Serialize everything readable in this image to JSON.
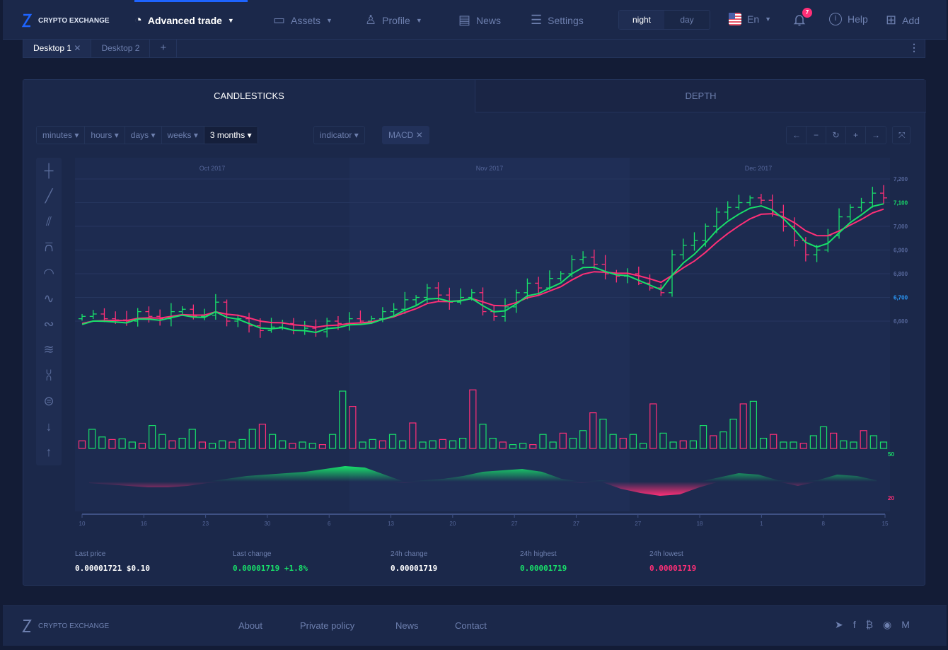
{
  "header": {
    "brand": "CRYPTO EXCHANGE",
    "nav": [
      {
        "label": "Advanced trade",
        "icon": "speedometer-icon"
      },
      {
        "label": "Assets",
        "icon": "wallet-icon"
      },
      {
        "label": "Profile",
        "icon": "user-icon"
      },
      {
        "label": "News",
        "icon": "news-icon"
      },
      {
        "label": "Settings",
        "icon": "sliders-icon"
      }
    ],
    "theme": {
      "night": "night",
      "day": "day",
      "selected": "night"
    },
    "language": "En",
    "notifications": "7",
    "help": "Help",
    "add": "Add"
  },
  "desktops": {
    "tabs": [
      "Desktop 1",
      "Desktop 2"
    ],
    "active": "Desktop 1",
    "add": "+"
  },
  "panel": {
    "tabs": [
      "CANDLESTICKS",
      "DEPTH"
    ],
    "active": "CANDLESTICKS",
    "timeframes": [
      "minutes",
      "hours",
      "days",
      "weeks",
      "3 months"
    ],
    "selected_timeframe": "3 months",
    "indicator": "indicator",
    "macd": "MACD"
  },
  "stats": [
    {
      "label": "Last price",
      "value": "0.00001721 $0.10",
      "color": "#ffffff"
    },
    {
      "label": "Last change",
      "value": "0.00001719 +1.8%",
      "color": "#18e06a"
    },
    {
      "label": "24h change",
      "value": "0.00001719",
      "color": "#ffffff"
    },
    {
      "label": "24h highest",
      "value": "0.00001719",
      "color": "#18e06a"
    },
    {
      "label": "24h lowest",
      "value": "0.00001719",
      "color": "#ff2f77"
    }
  ],
  "footer": {
    "brand": "CRYPTO EXCHANGE",
    "links": [
      "About",
      "Private policy",
      "News",
      "Contact"
    ]
  },
  "colors": {
    "up": "#18e06a",
    "down": "#ff2f77",
    "accent": "#1e64ff"
  },
  "chart_data": {
    "type": "candlestick",
    "months": [
      "Oct 2017",
      "Nov 2017",
      "Dec 2017"
    ],
    "yticks": [
      7200,
      7100,
      7000,
      6900,
      6800,
      6700,
      6600
    ],
    "ylim": [
      6500,
      7300
    ],
    "highlight_ticks": {
      "7100": "#18e06a",
      "6700": "#2b9cff"
    },
    "xticks": [
      "10",
      "16",
      "23",
      "30",
      "6",
      "13",
      "20",
      "27",
      "27",
      "27",
      "18",
      "1",
      "8",
      "15"
    ],
    "volume_labels": [
      "50",
      "20"
    ],
    "closes": [
      6620,
      6630,
      6610,
      6605,
      6600,
      6640,
      6620,
      6610,
      6640,
      6650,
      6620,
      6625,
      6680,
      6600,
      6610,
      6580,
      6560,
      6575,
      6590,
      6560,
      6570,
      6555,
      6600,
      6590,
      6610,
      6600,
      6610,
      6640,
      6650,
      6690,
      6700,
      6740,
      6710,
      6680,
      6700,
      6720,
      6640,
      6620,
      6660,
      6720,
      6760,
      6740,
      6780,
      6800,
      6860,
      6870,
      6840,
      6800,
      6790,
      6800,
      6760,
      6740,
      6720,
      6880,
      6920,
      6940,
      7000,
      7060,
      7080,
      7100,
      7120,
      7110,
      7060,
      7000,
      6940,
      6880,
      6900,
      6960,
      7040,
      7080,
      7100,
      7140,
      7120
    ],
    "volumes": [
      12,
      30,
      18,
      14,
      15,
      10,
      8,
      36,
      22,
      12,
      16,
      30,
      10,
      8,
      12,
      10,
      14,
      30,
      38,
      22,
      12,
      8,
      10,
      8,
      6,
      22,
      90,
      66,
      10,
      14,
      12,
      22,
      12,
      40,
      10,
      12,
      14,
      12,
      16,
      92,
      38,
      16,
      10,
      6,
      8,
      6,
      22,
      10,
      24,
      16,
      28,
      56,
      46,
      22,
      16,
      22,
      8,
      70,
      24,
      10,
      12,
      12,
      36,
      20,
      26,
      46,
      70,
      74,
      16,
      22,
      10,
      10,
      8,
      20,
      34,
      24,
      12,
      10,
      28,
      20,
      10
    ],
    "macd": [
      -2,
      -4,
      -6,
      -8,
      -8,
      -6,
      -2,
      4,
      8,
      10,
      12,
      14,
      18,
      22,
      20,
      10,
      -2,
      2,
      4,
      8,
      14,
      16,
      18,
      14,
      4,
      -2,
      2,
      -10,
      -16,
      -20,
      -18,
      -8,
      6,
      12,
      10,
      2,
      -6,
      2,
      10,
      8,
      2
    ]
  }
}
